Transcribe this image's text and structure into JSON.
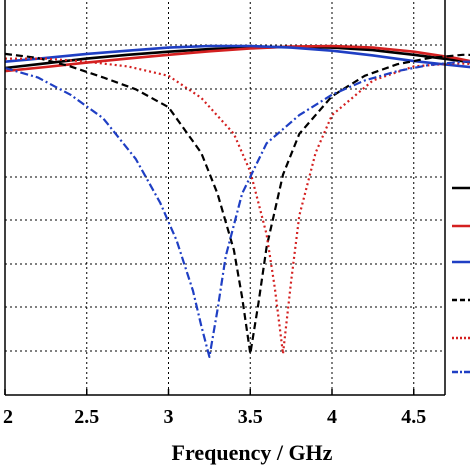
{
  "chart_data": {
    "type": "line",
    "xlabel": "Frequency / GHz",
    "ylabel": "",
    "title": "",
    "xlim": [
      2,
      5
    ],
    "ylim": [
      0,
      10
    ],
    "grid": true,
    "x_ticks": [
      2,
      2.5,
      3,
      3.5,
      4,
      4.5
    ],
    "x_tick_labels": [
      "2",
      "2.5",
      "3",
      "3.5",
      "4",
      "4.5"
    ],
    "legend_placement": "right",
    "series": [
      {
        "color": "#000000",
        "style": "solid",
        "x": [
          2.0,
          2.25,
          2.5,
          2.75,
          3.0,
          3.25,
          3.5,
          3.75,
          4.0,
          4.25,
          4.5,
          4.75,
          5.0
        ],
        "y": [
          9.3,
          9.45,
          9.6,
          9.72,
          9.82,
          9.9,
          9.95,
          9.97,
          9.95,
          9.87,
          9.72,
          9.55,
          9.38
        ]
      },
      {
        "color": "#d42020",
        "style": "solid",
        "x": [
          2.0,
          2.25,
          2.5,
          2.75,
          3.0,
          3.25,
          3.5,
          3.75,
          4.0,
          4.25,
          4.5,
          4.75,
          5.0
        ],
        "y": [
          9.2,
          9.33,
          9.47,
          9.6,
          9.72,
          9.83,
          9.92,
          9.98,
          10.0,
          9.95,
          9.82,
          9.62,
          9.35
        ]
      },
      {
        "color": "#1f3fc4",
        "style": "solid",
        "x": [
          2.0,
          2.25,
          2.5,
          2.75,
          3.0,
          3.25,
          3.5,
          3.75,
          4.0,
          4.25,
          4.5,
          4.75,
          5.0
        ],
        "y": [
          9.5,
          9.62,
          9.75,
          9.85,
          9.95,
          10.0,
          10.0,
          9.95,
          9.85,
          9.7,
          9.52,
          9.38,
          9.25
        ]
      },
      {
        "color": "#000000",
        "style": "dashed",
        "x": [
          2.0,
          2.2,
          2.4,
          2.6,
          2.8,
          3.0,
          3.2,
          3.3,
          3.4,
          3.45,
          3.5,
          3.55,
          3.6,
          3.7,
          3.8,
          4.0,
          4.2,
          4.4,
          4.6,
          4.8,
          5.0
        ],
        "y": [
          9.75,
          9.62,
          9.35,
          9.0,
          8.62,
          8.05,
          6.6,
          5.3,
          3.5,
          2.0,
          0.2,
          1.8,
          3.6,
          5.9,
          7.2,
          8.4,
          9.05,
          9.42,
          9.62,
          9.72,
          9.7
        ]
      },
      {
        "color": "#d42020",
        "style": "dotted",
        "x": [
          2.0,
          2.25,
          2.5,
          2.75,
          3.0,
          3.2,
          3.4,
          3.5,
          3.6,
          3.65,
          3.7,
          3.75,
          3.8,
          3.9,
          4.0,
          4.25,
          4.5,
          4.75,
          5.0
        ],
        "y": [
          9.6,
          9.6,
          9.5,
          9.35,
          9.05,
          8.35,
          7.2,
          6.0,
          4.0,
          2.3,
          0.2,
          2.5,
          4.6,
          6.6,
          7.8,
          8.9,
          9.35,
          9.45,
          9.4
        ]
      },
      {
        "color": "#1f3fc4",
        "style": "dashdot",
        "x": [
          2.0,
          2.2,
          2.4,
          2.6,
          2.8,
          2.95,
          3.05,
          3.15,
          3.2,
          3.25,
          3.3,
          3.35,
          3.45,
          3.6,
          3.8,
          4.0,
          4.2,
          4.4,
          4.6,
          4.8,
          5.0
        ],
        "y": [
          9.3,
          9.0,
          8.45,
          7.7,
          6.4,
          5.0,
          3.8,
          2.2,
          1.1,
          0.1,
          1.6,
          3.3,
          5.3,
          6.9,
          7.8,
          8.45,
          8.9,
          9.2,
          9.4,
          9.5,
          9.5
        ]
      }
    ]
  }
}
